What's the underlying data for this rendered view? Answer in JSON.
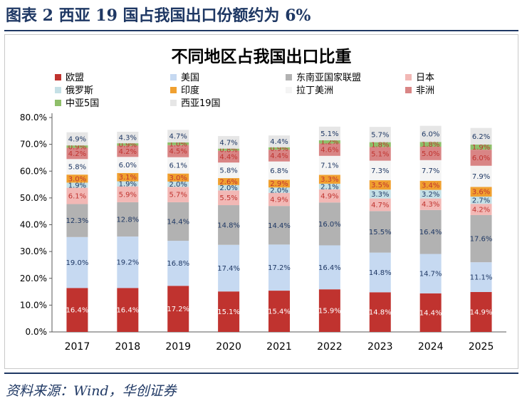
{
  "figure": {
    "title": "图表 2   西亚 19 国占我国出口份额约为 6%",
    "source": "资料来源：Wind，华创证券"
  },
  "chart_data": {
    "type": "bar",
    "stacked": true,
    "title": "不同地区占我国出口比重",
    "categories": [
      "2017",
      "2018",
      "2019",
      "2020",
      "2021",
      "2022",
      "2023",
      "2024",
      "2025"
    ],
    "ylim": [
      0,
      80
    ],
    "yticks": [
      0,
      10,
      20,
      30,
      40,
      50,
      60,
      70,
      80
    ],
    "ytick_labels": [
      "0.0%",
      "10.0%",
      "20.0%",
      "30.0%",
      "40.0%",
      "50.0%",
      "60.0%",
      "70.0%",
      "80.0%"
    ],
    "grid": false,
    "legend_position": "top",
    "legend_order": [
      "欧盟",
      "美国",
      "东南亚国家联盟",
      "日本",
      "俄罗斯",
      "印度",
      "拉丁美洲",
      "非洲",
      "中亚5国",
      "西亚19国"
    ],
    "series": [
      {
        "name": "欧盟",
        "color": "#c0332f",
        "label_color": "#ffffff",
        "values": [
          16.4,
          16.4,
          17.2,
          15.1,
          15.4,
          15.9,
          14.8,
          14.4,
          14.9
        ],
        "labels": [
          "16.4%",
          "16.4%",
          "17.2%",
          "15.1%",
          "15.4%",
          "15.9%",
          "14.8%",
          "14.4%",
          "14.9%"
        ]
      },
      {
        "name": "美国",
        "color": "#c6d9f1",
        "label_color": "#1f3864",
        "values": [
          19.0,
          19.2,
          16.8,
          17.4,
          17.2,
          16.4,
          14.8,
          14.7,
          11.1
        ],
        "labels": [
          "19.0%",
          "19.2%",
          "16.8%",
          "17.4%",
          "17.2%",
          "16.4%",
          "14.8%",
          "14.7%",
          "11.1%"
        ]
      },
      {
        "name": "东南亚国家联盟",
        "color": "#b2b2b2",
        "label_color": "#1f3864",
        "values": [
          12.3,
          12.8,
          14.4,
          14.8,
          14.4,
          16.0,
          15.5,
          16.4,
          17.6
        ],
        "labels": [
          "12.3%",
          "12.8%",
          "14.4%",
          "14.8%",
          "14.4%",
          "16.0%",
          "15.5%",
          "16.4%",
          "17.6%"
        ]
      },
      {
        "name": "日本",
        "color": "#f2b8b5",
        "label_color": "#c0332f",
        "values": [
          6.1,
          5.9,
          5.7,
          5.5,
          4.9,
          4.9,
          4.7,
          4.3,
          4.2
        ],
        "labels": [
          "6.1%",
          "5.9%",
          "5.7%",
          "5.5%",
          "4.9%",
          "4.9%",
          "4.7%",
          "4.3%",
          "4.2%"
        ]
      },
      {
        "name": "俄罗斯",
        "color": "#c5e0e6",
        "label_color": "#1f3864",
        "values": [
          1.9,
          1.9,
          2.0,
          2.0,
          2.0,
          2.1,
          3.3,
          3.2,
          2.7
        ],
        "labels": [
          "1.9%",
          "1.9%",
          "2.0%",
          "2.0%",
          "2.0%",
          "2.1%",
          "3.3%",
          "3.2%",
          "2.7%"
        ]
      },
      {
        "name": "印度",
        "color": "#f0a030",
        "label_color": "#c0332f",
        "values": [
          3.0,
          3.1,
          3.0,
          2.6,
          2.9,
          3.3,
          3.5,
          3.4,
          3.6
        ],
        "labels": [
          "3.0%",
          "3.1%",
          "3.0%",
          "2.6%",
          "2.9%",
          "3.3%",
          "3.5%",
          "3.4%",
          "3.6%"
        ]
      },
      {
        "name": "拉丁美洲",
        "color": "#f4f4f4",
        "label_color": "#1f3864",
        "values": [
          5.8,
          6.0,
          6.1,
          5.8,
          6.8,
          7.1,
          7.3,
          7.7,
          7.9
        ],
        "labels": [
          "5.8%",
          "6.0%",
          "6.1%",
          "5.8%",
          "6.8%",
          "7.1%",
          "7.3%",
          "7.7%",
          "7.9%"
        ]
      },
      {
        "name": "非洲",
        "color": "#d98585",
        "label_color": "#c0332f",
        "values": [
          4.2,
          4.2,
          4.5,
          4.4,
          4.4,
          4.6,
          5.1,
          5.0,
          6.0
        ],
        "labels": [
          "4.2%",
          "4.2%",
          "4.5%",
          "4.4%",
          "4.4%",
          "4.6%",
          "5.1%",
          "5.0%",
          "6.0%"
        ]
      },
      {
        "name": "中亚5国",
        "color": "#8fbf6a",
        "label_color": "#c0332f",
        "values": [
          0.9,
          0.9,
          1.0,
          0.8,
          0.9,
          1.2,
          1.8,
          1.8,
          1.9
        ],
        "labels": [
          "0.9%",
          "0.9%",
          "1.0%",
          "0.8%",
          "0.9%",
          "1.2%",
          "1.8%",
          "1.8%",
          "1.9%"
        ]
      },
      {
        "name": "西亚19国",
        "color": "#e6e6e6",
        "label_color": "#1f3864",
        "values": [
          4.9,
          4.3,
          4.7,
          4.7,
          4.4,
          5.1,
          5.7,
          6.0,
          6.2
        ],
        "labels": [
          "4.9%",
          "4.3%",
          "4.7%",
          "4.7%",
          "4.4%",
          "5.1%",
          "5.7%",
          "6.0%",
          "6.2%"
        ]
      }
    ]
  }
}
